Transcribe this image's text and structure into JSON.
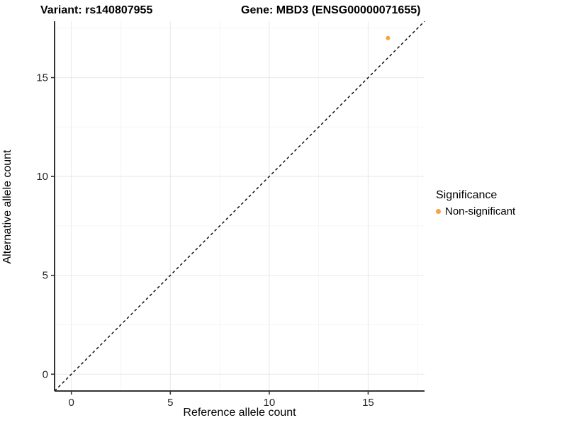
{
  "chart_data": {
    "type": "scatter",
    "title_left": "Variant: rs140807955",
    "title_right": "Gene: MBD3 (ENSG00000071655)",
    "xlabel": "Reference allele count",
    "ylabel": "Alternative allele count",
    "xlim": [
      -0.85,
      17.85
    ],
    "ylim": [
      -0.85,
      17.85
    ],
    "x_major_ticks": [
      0,
      5,
      10,
      15
    ],
    "y_major_ticks": [
      0,
      5,
      10,
      15
    ],
    "x_minor_ticks": [
      2.5,
      7.5,
      12.5,
      17.5
    ],
    "y_minor_ticks": [
      2.5,
      7.5,
      12.5,
      17.5
    ],
    "grid": true,
    "legend_position": "right",
    "reference_line": {
      "kind": "identity",
      "equation": "y = x",
      "style": "dashed",
      "color": "#000000"
    },
    "series": [
      {
        "name": "Non-significant",
        "color": "#F9A242",
        "points": [
          {
            "x": 16,
            "y": 17
          }
        ]
      }
    ],
    "legend": {
      "title": "Significance",
      "entries": [
        {
          "label": "Non-significant",
          "color": "#F9A242"
        }
      ]
    },
    "style_colors": {
      "background": "#ffffff",
      "grid_major": "#ebebeb",
      "grid_minor": "#f5f5f5",
      "axis_line": "#333333",
      "tick_label": "#262626",
      "point": "#F9A242",
      "dashed_line": "#000000"
    }
  }
}
